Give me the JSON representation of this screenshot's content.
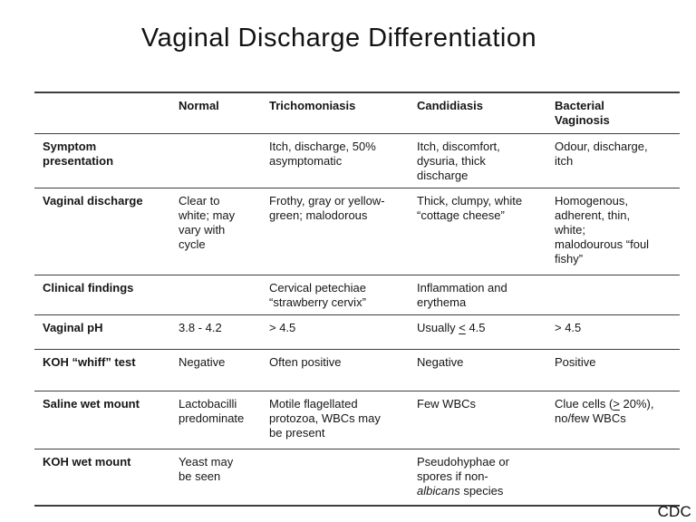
{
  "title": "Vaginal Discharge Differentiation",
  "footer": {
    "credit": "CDC"
  },
  "colors": {
    "background": "#ffffff",
    "text": "#161616",
    "rule": "#3e3e3e"
  },
  "table": {
    "columns": [
      "",
      "Normal",
      "Trichomoniasis",
      "Candidiasis",
      "Bacterial\nVaginosis"
    ],
    "rows": [
      {
        "label": "Symptom\npresentation",
        "cells": [
          "",
          "Itch, discharge, 50%\nasymptomatic",
          "Itch, discomfort,\ndysuria, thick\ndischarge",
          "Odour, discharge,\nitch"
        ]
      },
      {
        "label": "Vaginal discharge",
        "cells": [
          "Clear to\nwhite; may\nvary with\ncycle",
          "Frothy, gray or yellow-\ngreen; malodorous",
          "Thick, clumpy, white\n“cottage cheese”",
          "Homogenous,\nadherent, thin,\nwhite;\nmalodourous “foul\nfishy”"
        ]
      },
      {
        "label": "Clinical findings",
        "cells": [
          "",
          "Cervical petechiae\n“strawberry cervix”",
          "Inflammation and\nerythema",
          ""
        ]
      },
      {
        "label": "Vaginal pH",
        "cells": [
          "3.8 - 4.2",
          "> 4.5",
          {
            "segments": [
              {
                "t": "Usually "
              },
              {
                "t": "<",
                "underline": true
              },
              {
                "t": " 4.5"
              }
            ]
          },
          "> 4.5"
        ]
      },
      {
        "label": "KOH “whiff” test",
        "cells": [
          "Negative",
          "Often positive",
          "Negative",
          "Positive"
        ]
      },
      {
        "label": "Saline wet mount",
        "cells": [
          "Lactobacilli\npredominate",
          "Motile flagellated\nprotozoa, WBCs may\nbe present",
          "Few WBCs",
          {
            "segments": [
              {
                "t": "Clue cells ("
              },
              {
                "t": ">",
                "underline": true
              },
              {
                "t": " 20%),\nno/few WBCs"
              }
            ]
          }
        ]
      },
      {
        "label": "KOH wet mount",
        "cells": [
          "Yeast may\nbe seen",
          "",
          {
            "segments": [
              {
                "t": "Pseudohyphae or\nspores if non-\n"
              },
              {
                "t": "albicans",
                "italic": true
              },
              {
                "t": " species"
              }
            ]
          },
          ""
        ]
      }
    ]
  }
}
